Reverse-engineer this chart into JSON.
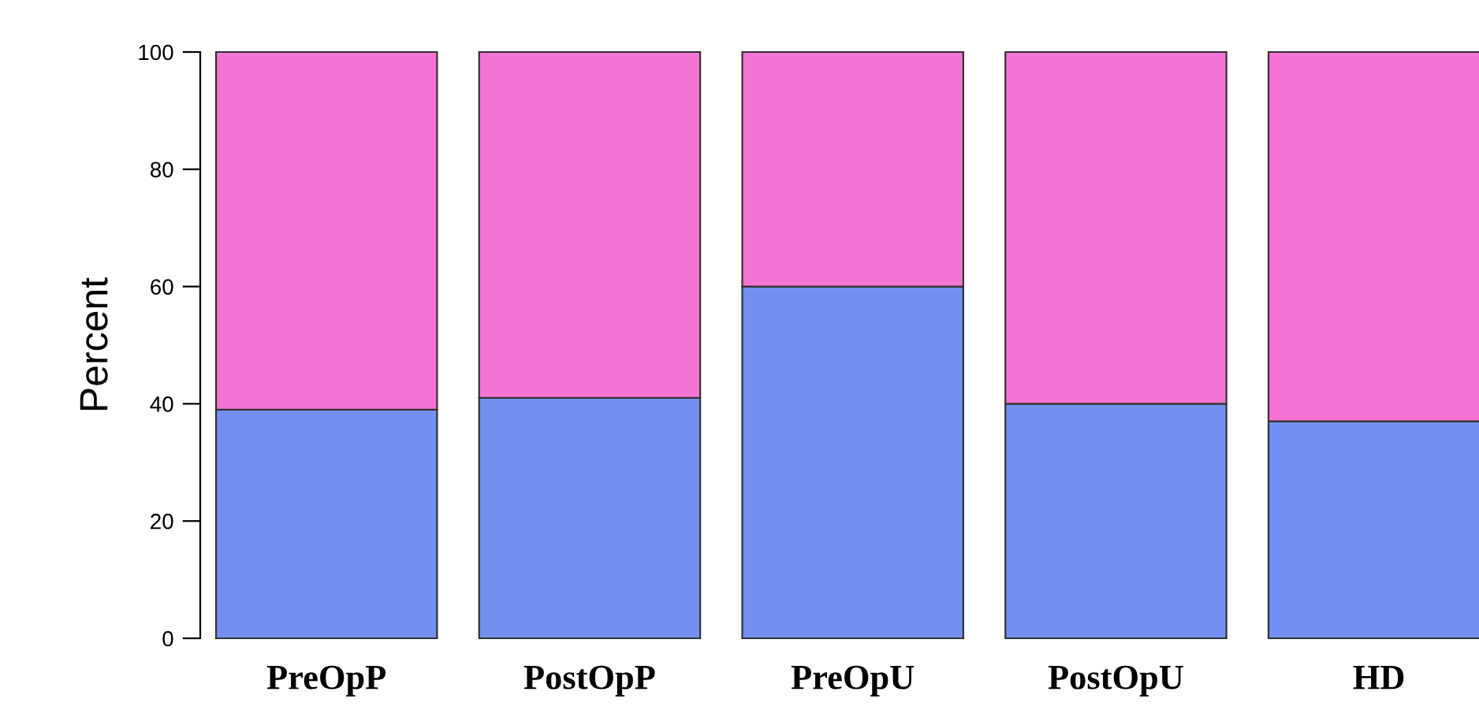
{
  "chart_data": {
    "type": "bar",
    "stacked": true,
    "ylabel": "Percent",
    "categories": [
      "PreOpP",
      "PostOpP",
      "PreOpU",
      "PostOpU",
      "HD"
    ],
    "series": [
      {
        "color": "#7390f0",
        "values": [
          39,
          41,
          60,
          40,
          37
        ]
      },
      {
        "color": "#f374d2",
        "values": [
          61,
          59,
          40,
          60,
          63
        ]
      }
    ],
    "ylim": [
      0,
      100
    ],
    "yticks": [
      0,
      20,
      40,
      60,
      80,
      100
    ],
    "grid": false
  }
}
